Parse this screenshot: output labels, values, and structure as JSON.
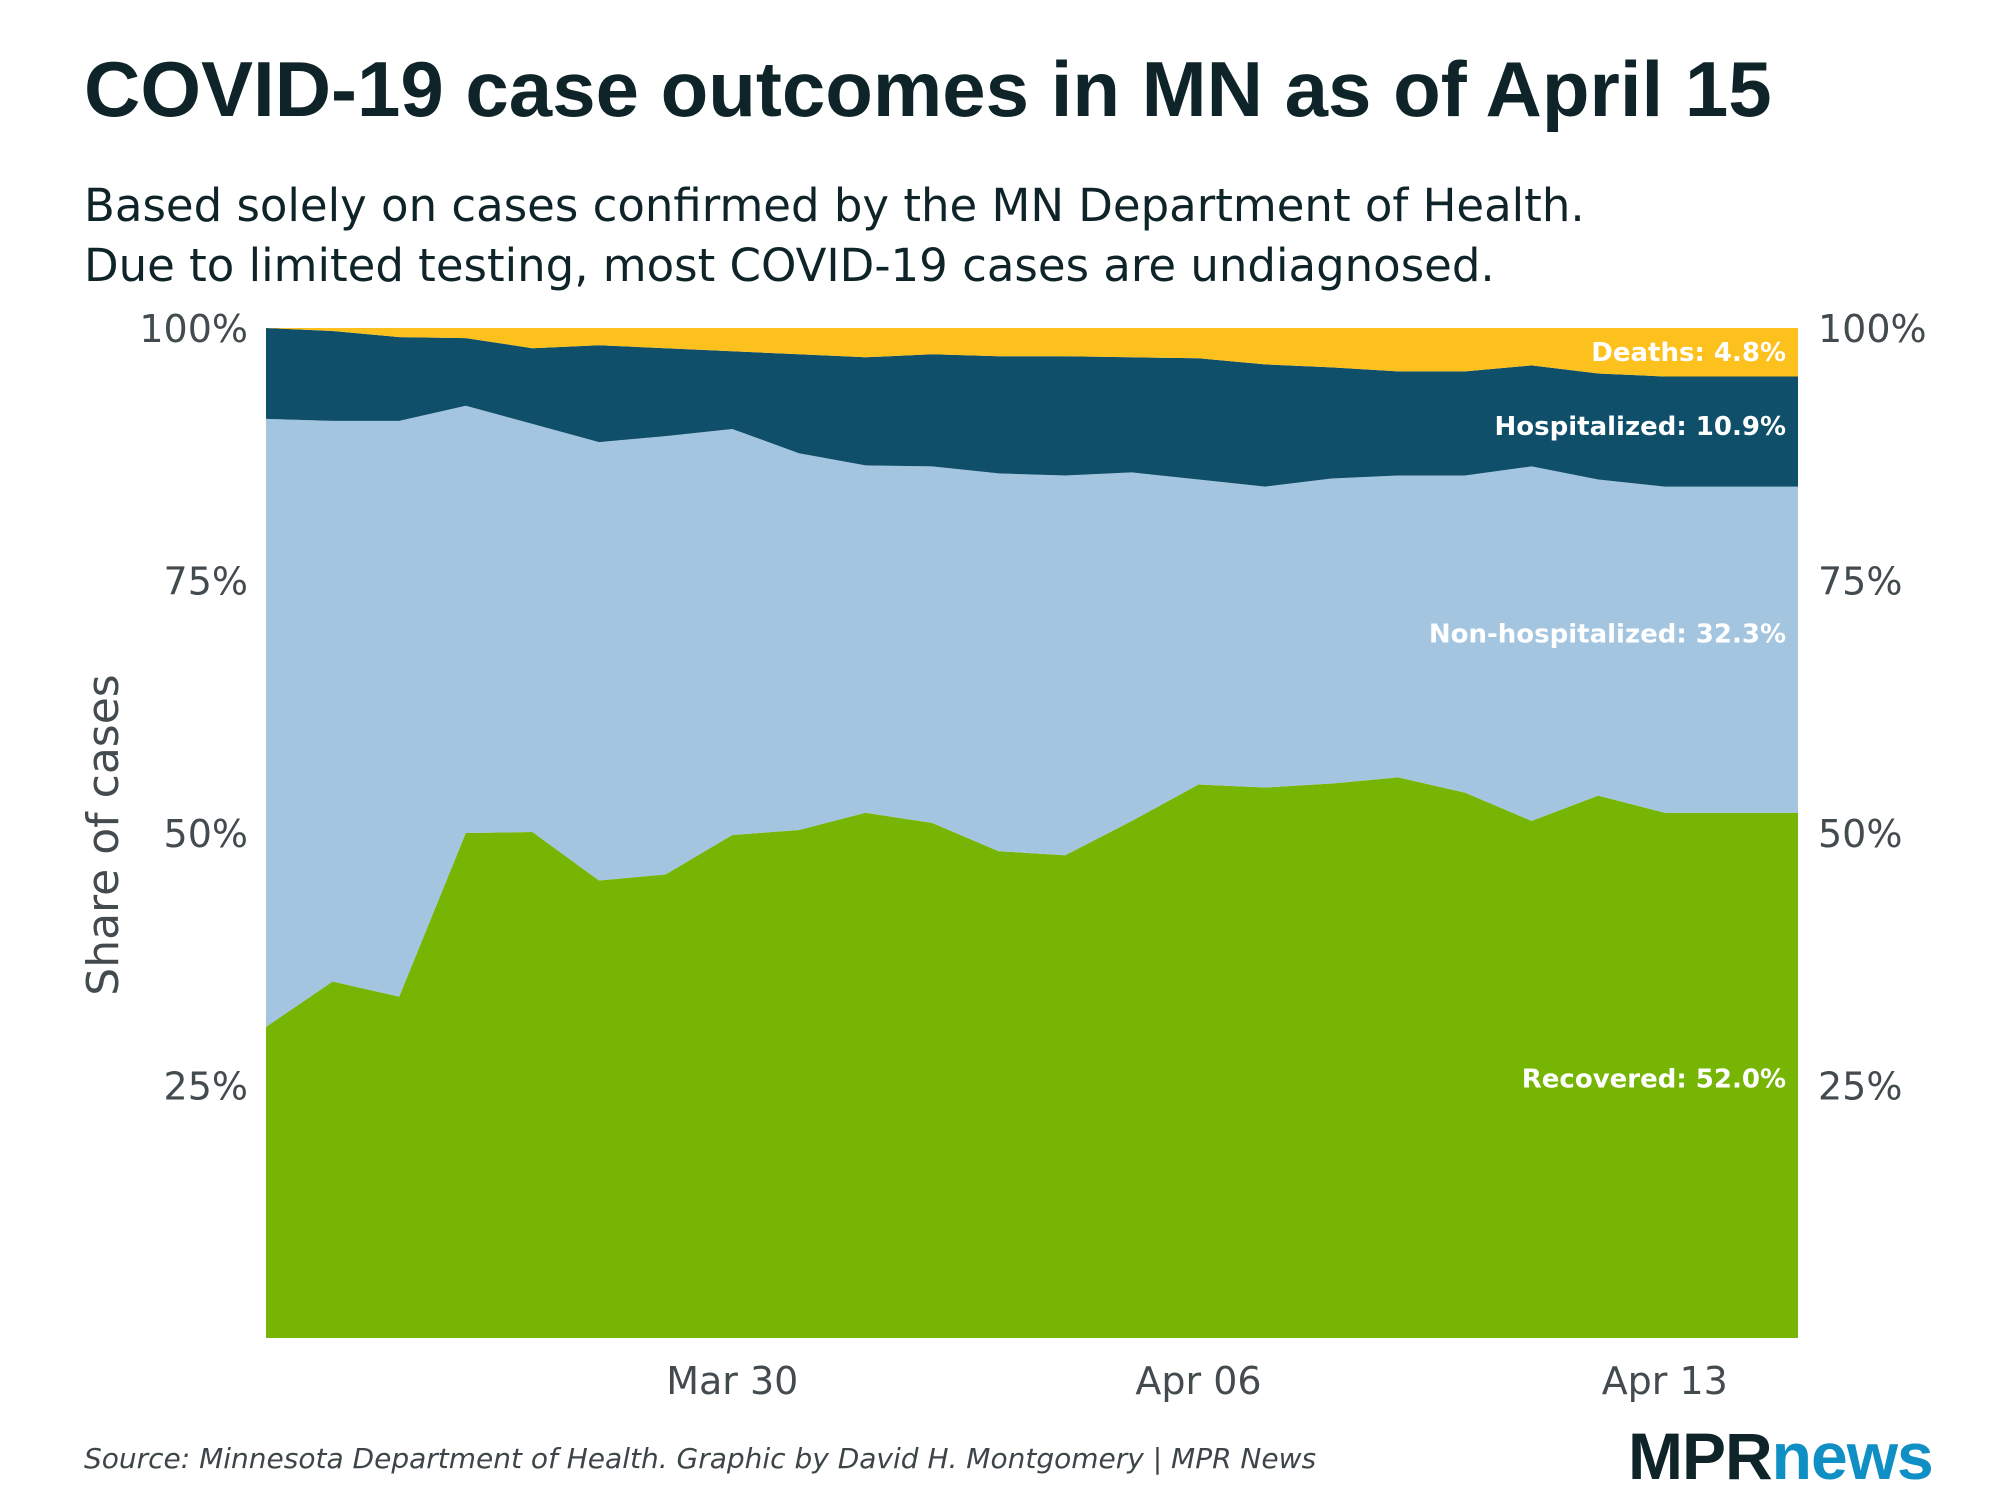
{
  "title": "COVID-19 case outcomes in MN as of April 15",
  "subtitle_lines": [
    "Based solely on cases confirmed by the MN Department of Health.",
    "Due to limited testing, most COVID-19 cases are undiagnosed."
  ],
  "source": "Source: Minnesota Department of Health. Graphic by David H. Montgomery | MPR News",
  "logo": {
    "mpr": "MPR",
    "news": "news"
  },
  "colors": {
    "recovered": "#77b505",
    "nonhospitalized": "#a3c5e0",
    "hospitalized": "#0f4f6a",
    "deaths": "#fdc11d"
  },
  "chart_data": {
    "type": "area",
    "stacked": true,
    "title": "COVID-19 case outcomes in MN as of April 15",
    "xlabel": "",
    "ylabel": "Share of cases",
    "ylim": [
      0,
      100
    ],
    "yticks": [
      {
        "value": 25,
        "label": "25%"
      },
      {
        "value": 50,
        "label": "50%"
      },
      {
        "value": 75,
        "label": "75%"
      },
      {
        "value": 100,
        "label": "100%"
      }
    ],
    "x": [
      "2020-03-23",
      "2020-03-24",
      "2020-03-25",
      "2020-03-26",
      "2020-03-27",
      "2020-03-28",
      "2020-03-29",
      "2020-03-30",
      "2020-03-31",
      "2020-04-01",
      "2020-04-02",
      "2020-04-03",
      "2020-04-04",
      "2020-04-05",
      "2020-04-06",
      "2020-04-07",
      "2020-04-08",
      "2020-04-09",
      "2020-04-10",
      "2020-04-11",
      "2020-04-12",
      "2020-04-13",
      "2020-04-14",
      "2020-04-15"
    ],
    "xlim": [
      "2020-03-23",
      "2020-04-15"
    ],
    "xticks": [
      {
        "value": "2020-03-30",
        "label": "Mar 30"
      },
      {
        "value": "2020-04-06",
        "label": "Apr 06"
      },
      {
        "value": "2020-04-13",
        "label": "Apr 13"
      }
    ],
    "series": [
      {
        "name": "Recovered",
        "key": "recovered",
        "values": [
          30.8,
          35.3,
          33.8,
          50.0,
          50.1,
          45.3,
          45.9,
          49.8,
          50.3,
          52.0,
          51.0,
          48.2,
          47.8,
          51.2,
          54.8,
          54.5,
          54.9,
          55.5,
          54.0,
          51.2,
          53.7,
          52.0,
          52.0,
          52.0
        ],
        "label": "Recovered: 52.0%"
      },
      {
        "name": "Non-hospitalized",
        "key": "nonhospitalized",
        "values": [
          60.2,
          55.5,
          57.0,
          42.3,
          40.4,
          43.4,
          43.4,
          40.2,
          37.3,
          34.4,
          35.3,
          37.4,
          37.6,
          34.5,
          30.2,
          29.8,
          30.2,
          29.9,
          31.4,
          35.1,
          31.3,
          32.3,
          32.3,
          32.3
        ],
        "label": "Non-hospitalized: 32.3%"
      },
      {
        "name": "Hospitalized",
        "key": "hospitalized",
        "values": [
          9.0,
          8.9,
          8.3,
          6.7,
          7.5,
          9.6,
          8.7,
          7.7,
          9.8,
          10.7,
          11.1,
          11.6,
          11.8,
          11.4,
          12.0,
          12.1,
          11.0,
          10.3,
          10.3,
          10.0,
          10.5,
          10.9,
          10.9,
          10.9
        ],
        "label": "Hospitalized: 10.9%"
      },
      {
        "name": "Deaths",
        "key": "deaths",
        "values": [
          0.0,
          0.3,
          0.9,
          1.0,
          2.0,
          1.7,
          2.0,
          2.3,
          2.6,
          2.9,
          2.6,
          2.8,
          2.8,
          2.9,
          3.0,
          3.6,
          3.9,
          4.3,
          4.3,
          3.7,
          4.5,
          4.8,
          4.8,
          4.8
        ],
        "label": "Deaths: 4.8%"
      }
    ],
    "end_labels": [
      "Deaths: 4.8%",
      "Hospitalized: 10.9%",
      "Non-hospitalized: 32.3%",
      "Recovered: 52.0%"
    ],
    "grid": false,
    "legend": "direct labels at right end of each band"
  }
}
